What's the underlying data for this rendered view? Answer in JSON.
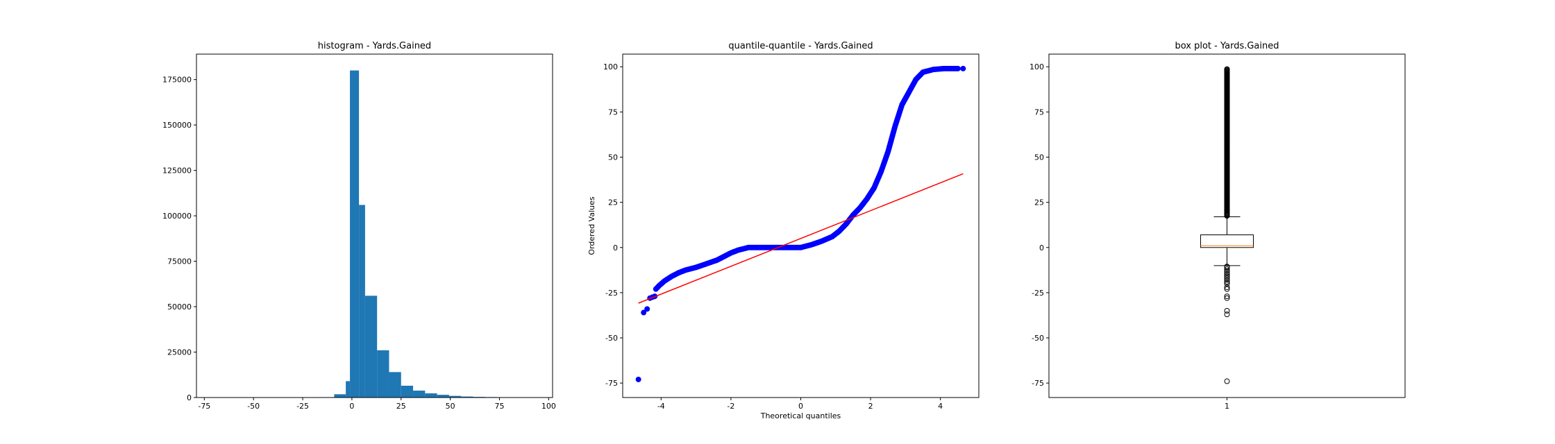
{
  "chart_data": [
    {
      "type": "bar",
      "title": "histogram - Yards.Gained",
      "xlabel": "",
      "ylabel": "",
      "xlim": [
        -79,
        102
      ],
      "ylim": [
        0,
        189000
      ],
      "x_ticks": [
        -75,
        -50,
        -25,
        0,
        25,
        50,
        75,
        100
      ],
      "y_ticks": [
        0,
        25000,
        50000,
        75000,
        100000,
        125000,
        150000,
        175000
      ],
      "bar_color": "#1f77b4",
      "bins": [
        {
          "x0": -15.3,
          "x1": -9.0,
          "value": 200
        },
        {
          "x0": -9.0,
          "x1": -3.1,
          "value": 1800
        },
        {
          "x0": -3.1,
          "x1": -1.0,
          "value": 9000
        },
        {
          "x0": -1.0,
          "x1": 3.6,
          "value": 180000
        },
        {
          "x0": 3.6,
          "x1": 6.7,
          "value": 106000
        },
        {
          "x0": 6.7,
          "x1": 12.8,
          "value": 56000
        },
        {
          "x0": 12.8,
          "x1": 18.9,
          "value": 26000
        },
        {
          "x0": 18.9,
          "x1": 25.0,
          "value": 14000
        },
        {
          "x0": 25.0,
          "x1": 31.1,
          "value": 6500
        },
        {
          "x0": 31.1,
          "x1": 37.2,
          "value": 3800
        },
        {
          "x0": 37.2,
          "x1": 43.3,
          "value": 2300
        },
        {
          "x0": 43.3,
          "x1": 49.4,
          "value": 1500
        },
        {
          "x0": 49.4,
          "x1": 55.5,
          "value": 900
        },
        {
          "x0": 55.5,
          "x1": 61.6,
          "value": 550
        },
        {
          "x0": 61.6,
          "x1": 67.7,
          "value": 350
        },
        {
          "x0": 67.7,
          "x1": 73.8,
          "value": 250
        },
        {
          "x0": 73.8,
          "x1": 79.9,
          "value": 180
        },
        {
          "x0": 79.9,
          "x1": 86.0,
          "value": 130
        },
        {
          "x0": 86.0,
          "x1": 92.1,
          "value": 100
        },
        {
          "x0": 92.1,
          "x1": 98.2,
          "value": 120
        }
      ]
    },
    {
      "type": "scatter",
      "title": "quantile-quantile - Yards.Gained",
      "xlabel": "Theoretical quantiles",
      "ylabel": "Ordered Values",
      "xlim": [
        -5.1,
        5.1
      ],
      "ylim": [
        -83,
        107
      ],
      "x_ticks": [
        -4,
        -2,
        0,
        2,
        4
      ],
      "y_ticks": [
        -75,
        -50,
        -25,
        0,
        25,
        50,
        75,
        100
      ],
      "point_color": "#0000ff",
      "line_color": "#ff0000",
      "fit_line": [
        [
          -4.65,
          -30.8
        ],
        [
          4.65,
          40.8
        ]
      ],
      "outlier_points": [
        [
          -4.65,
          -73
        ],
        [
          -4.5,
          -36
        ],
        [
          -4.4,
          -34
        ],
        [
          -4.32,
          -28
        ],
        [
          -4.25,
          -27.5
        ],
        [
          -4.18,
          -27
        ]
      ],
      "quantile_curve": [
        [
          -4.15,
          -23
        ],
        [
          -4.05,
          -21
        ],
        [
          -3.9,
          -18.5
        ],
        [
          -3.7,
          -16
        ],
        [
          -3.5,
          -14
        ],
        [
          -3.3,
          -12.5
        ],
        [
          -3.0,
          -11
        ],
        [
          -2.7,
          -9
        ],
        [
          -2.4,
          -7
        ],
        [
          -2.2,
          -5
        ],
        [
          -2.0,
          -3
        ],
        [
          -1.8,
          -1.5
        ],
        [
          -1.5,
          0
        ],
        [
          -1.0,
          0
        ],
        [
          -0.5,
          0
        ],
        [
          0.0,
          0
        ],
        [
          0.3,
          1.5
        ],
        [
          0.6,
          3.5
        ],
        [
          0.9,
          6
        ],
        [
          1.1,
          9
        ],
        [
          1.3,
          13
        ],
        [
          1.5,
          18
        ],
        [
          1.7,
          22
        ],
        [
          1.9,
          27
        ],
        [
          2.1,
          33
        ],
        [
          2.3,
          42
        ],
        [
          2.5,
          53
        ],
        [
          2.7,
          67
        ],
        [
          2.9,
          79
        ],
        [
          3.1,
          86
        ],
        [
          3.3,
          93
        ],
        [
          3.5,
          97
        ],
        [
          3.8,
          98.5
        ],
        [
          4.1,
          99
        ],
        [
          4.5,
          99
        ]
      ],
      "isolated_points": [
        [
          4.65,
          99
        ]
      ]
    },
    {
      "type": "box",
      "title": "box plot - Yards.Gained",
      "xlabel": "",
      "ylabel": "",
      "ylim": [
        -83,
        107
      ],
      "x_ticks": [
        "1"
      ],
      "y_ticks": [
        -75,
        -50,
        -25,
        0,
        25,
        50,
        75,
        100
      ],
      "median_color": "#ff7f0e",
      "box": {
        "q1": 0,
        "median": 1,
        "q3": 7,
        "whisker_low": -10,
        "whisker_high": 17
      },
      "fliers_high": [
        17.5,
        99
      ],
      "fliers_low": [
        -10.5,
        -11,
        -12,
        -13,
        -14,
        -15,
        -16,
        -17,
        -18,
        -19,
        -20,
        -22,
        -23,
        -27,
        -28,
        -35,
        -37,
        -74
      ]
    }
  ]
}
